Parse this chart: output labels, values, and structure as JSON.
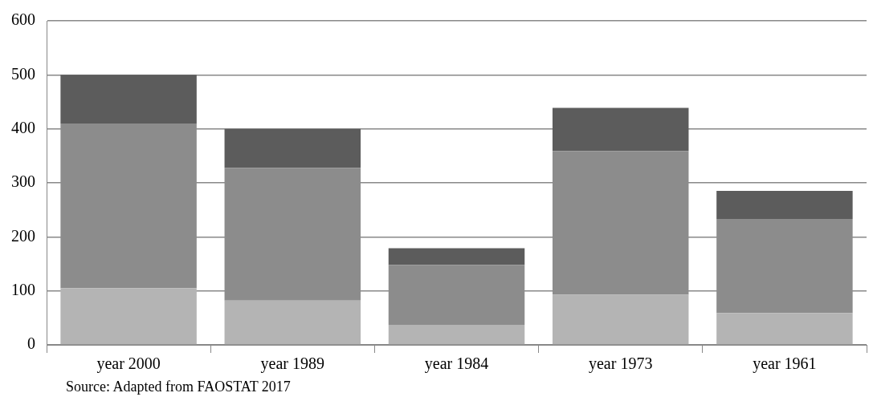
{
  "chart_data": {
    "type": "bar",
    "stacked": true,
    "categories": [
      "year 2000",
      "year 1989",
      "year 1984",
      "year 1973",
      "year 1961"
    ],
    "series": [
      {
        "color": "#b4b4b4",
        "values": [
          105,
          82,
          37,
          93,
          59
        ]
      },
      {
        "color": "#8c8c8c",
        "values": [
          305,
          246,
          111,
          266,
          174
        ]
      },
      {
        "color": "#5c5c5c",
        "values": [
          90,
          72,
          31,
          80,
          52
        ]
      }
    ],
    "ylim": [
      0,
      600
    ],
    "yticks": [
      0,
      100,
      200,
      300,
      400,
      500,
      600
    ],
    "grid": "y",
    "annotations": [
      "Source: Adapted from FAOSTAT 2017"
    ]
  }
}
